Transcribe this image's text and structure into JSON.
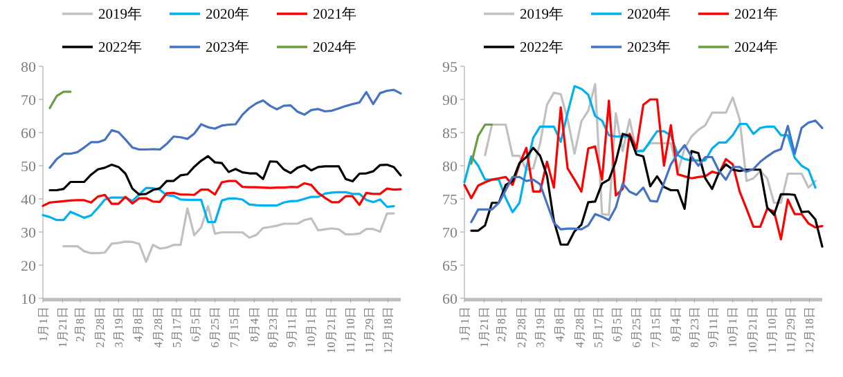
{
  "chart_data": [
    {
      "type": "line",
      "legend": "top",
      "x": [
        "--01-01",
        "--01-08",
        "--01-15",
        "--01-22",
        "--01-29",
        "--02-05",
        "--02-12",
        "--02-19",
        "--02-26",
        "--03-05",
        "--03-12",
        "--03-19",
        "--03-26",
        "--04-02",
        "--04-09",
        "--04-16",
        "--04-23",
        "--04-30",
        "--05-07",
        "--05-14",
        "--05-21",
        "--05-28",
        "--06-04",
        "--06-11",
        "--06-18",
        "--06-25",
        "--07-02",
        "--07-09",
        "--07-16",
        "--07-23",
        "--07-30",
        "--08-06",
        "--08-13",
        "--08-20",
        "--08-27",
        "--09-03",
        "--09-10",
        "--09-17",
        "--09-24",
        "--10-01",
        "--10-08",
        "--10-15",
        "--10-22",
        "--10-29",
        "--11-05",
        "--11-12",
        "--11-19",
        "--11-26",
        "--12-03",
        "--12-10",
        "--12-17",
        "--12-24",
        "--12-31"
      ],
      "xlim": [
        "--01-01",
        "--12-31"
      ],
      "xticks": [
        {
          "value": "--01-01",
          "label": "1月1日"
        },
        {
          "value": "--01-21",
          "label": "1月21日"
        },
        {
          "value": "--02-08",
          "label": "2月8日"
        },
        {
          "value": "--02-28",
          "label": "2月28日"
        },
        {
          "value": "--03-19",
          "label": "3月19日"
        },
        {
          "value": "--04-08",
          "label": "4月8日"
        },
        {
          "value": "--04-28",
          "label": "4月28日"
        },
        {
          "value": "--05-17",
          "label": "5月17日"
        },
        {
          "value": "--06-05",
          "label": "6月5日"
        },
        {
          "value": "--06-25",
          "label": "6月25日"
        },
        {
          "value": "--07-15",
          "label": "7月15日"
        },
        {
          "value": "--08-04",
          "label": "8月4日"
        },
        {
          "value": "--08-23",
          "label": "8月23日"
        },
        {
          "value": "--09-11",
          "label": "9月11日"
        },
        {
          "value": "--10-01",
          "label": "10月1日"
        },
        {
          "value": "--10-21",
          "label": "10月21日"
        },
        {
          "value": "--11-10",
          "label": "11月10日"
        },
        {
          "value": "--11-29",
          "label": "11月29日"
        },
        {
          "value": "--12-18",
          "label": "12月18日"
        }
      ],
      "ylim": [
        10,
        80
      ],
      "yticks": [
        10,
        20,
        30,
        40,
        50,
        60,
        70,
        80
      ],
      "series": [
        {
          "name": "2019年",
          "color": "#c0c0c0",
          "values": [
            null,
            null,
            null,
            25.7,
            25.7,
            25.7,
            24.2,
            23.6,
            23.6,
            23.8,
            26.5,
            26.7,
            27.1,
            27,
            26.4,
            21,
            26.1,
            25,
            25.3,
            26.1,
            26.1,
            37.1,
            29,
            31.4,
            37.8,
            29.5,
            29.9,
            29.9,
            29.9,
            29.9,
            28.3,
            29.1,
            31.2,
            31.5,
            31.9,
            32.5,
            32.5,
            32.5,
            33.6,
            34.1,
            30.5,
            30.8,
            31.1,
            30.8,
            29.3,
            29.3,
            29.5,
            30.9,
            30.9,
            30.1,
            35.6,
            35.6,
            null
          ]
        },
        {
          "name": "2020年",
          "color": "#00b0f0",
          "values": [
            35.1,
            34.5,
            33.6,
            33.6,
            36.1,
            35.2,
            34.3,
            35,
            37.3,
            39.8,
            40.4,
            40.4,
            40.4,
            39.4,
            41.3,
            43.3,
            43.2,
            42.7,
            41.1,
            40.9,
            39.8,
            39.7,
            39.7,
            39.7,
            33,
            33,
            39.5,
            40.1,
            40.1,
            39.8,
            38.3,
            38.1,
            38,
            38,
            38,
            38.9,
            39.3,
            39.4,
            40,
            40.6,
            40.6,
            41.6,
            41.9,
            42,
            42,
            41.5,
            41.5,
            39.7,
            39,
            39.8,
            37.6,
            37.8,
            null
          ]
        },
        {
          "name": "2021年",
          "color": "#ff0000",
          "values": [
            37.9,
            38.9,
            39.1,
            39.3,
            39.5,
            39.6,
            39.6,
            38.9,
            40.7,
            41.2,
            38.5,
            38.5,
            40.6,
            38.6,
            40.2,
            40.2,
            39.2,
            39.1,
            41.7,
            41.8,
            41.3,
            41.3,
            41.2,
            42.8,
            42.8,
            41.3,
            45,
            45.4,
            45.4,
            43.6,
            43.5,
            43.5,
            43.4,
            43.3,
            43.4,
            43.4,
            43.6,
            43.5,
            44.7,
            44.2,
            41.8,
            40.3,
            39,
            39,
            40.8,
            40.8,
            38.2,
            41.8,
            41.5,
            41.5,
            43.1,
            42.8,
            42.9
          ]
        },
        {
          "name": "2022年",
          "color": "#000000",
          "values": [
            null,
            42.6,
            42.6,
            43,
            45.1,
            45.1,
            45.1,
            47.3,
            48.9,
            49.4,
            50.3,
            49.6,
            47.6,
            43.1,
            41.3,
            41.5,
            42.7,
            43.2,
            45.4,
            45.4,
            47.1,
            47.4,
            49.7,
            51.5,
            52.9,
            51,
            50.8,
            48.1,
            49,
            48,
            47.7,
            47.7,
            46,
            51.3,
            51.2,
            48.9,
            47.8,
            49.4,
            50.1,
            48.6,
            49.6,
            49.8,
            49.8,
            49.8,
            46,
            45.3,
            47.6,
            47.7,
            48.3,
            50.2,
            50.3,
            49.6,
            47.1
          ]
        },
        {
          "name": "2023年",
          "color": "#4472c4",
          "values": [
            null,
            49.4,
            52,
            53.6,
            53.6,
            54.1,
            55.5,
            57.1,
            57.1,
            57.8,
            60.7,
            60.1,
            57.9,
            55.5,
            54.9,
            54.9,
            55,
            54.9,
            56.6,
            58.8,
            58.6,
            58.1,
            59.7,
            62.5,
            61.6,
            61.2,
            62.1,
            62.4,
            62.5,
            65.4,
            67.4,
            68.8,
            69.7,
            68.1,
            67,
            68.1,
            68.2,
            66.3,
            65.4,
            66.8,
            67.1,
            66.4,
            66.6,
            67.3,
            68,
            68.6,
            69.1,
            72.2,
            68.6,
            71.9,
            72.6,
            72.9,
            71.8
          ]
        },
        {
          "name": "2024年",
          "color": "#6a9e3f",
          "x": [
            "--01-08",
            "--01-15",
            "--01-22",
            "--01-29"
          ],
          "values": [
            67.4,
            71,
            72.3,
            72.3
          ]
        }
      ]
    },
    {
      "type": "line",
      "legend": "top",
      "x": [
        "--01-01",
        "--01-08",
        "--01-15",
        "--01-22",
        "--01-29",
        "--02-05",
        "--02-12",
        "--02-19",
        "--02-26",
        "--03-05",
        "--03-12",
        "--03-19",
        "--03-26",
        "--04-02",
        "--04-09",
        "--04-16",
        "--04-23",
        "--04-30",
        "--05-07",
        "--05-14",
        "--05-21",
        "--05-28",
        "--06-04",
        "--06-11",
        "--06-18",
        "--06-25",
        "--07-02",
        "--07-09",
        "--07-16",
        "--07-23",
        "--07-30",
        "--08-06",
        "--08-13",
        "--08-20",
        "--08-27",
        "--09-03",
        "--09-10",
        "--09-17",
        "--09-24",
        "--10-01",
        "--10-08",
        "--10-15",
        "--10-22",
        "--10-29",
        "--11-05",
        "--11-12",
        "--11-19",
        "--11-26",
        "--12-03",
        "--12-10",
        "--12-17",
        "--12-24",
        "--12-31"
      ],
      "xlim": [
        "--01-01",
        "--12-31"
      ],
      "xticks": [
        {
          "value": "--01-01",
          "label": "1月1日"
        },
        {
          "value": "--01-21",
          "label": "1月21日"
        },
        {
          "value": "--02-08",
          "label": "2月8日"
        },
        {
          "value": "--02-28",
          "label": "2月28日"
        },
        {
          "value": "--03-19",
          "label": "3月19日"
        },
        {
          "value": "--04-08",
          "label": "4月8日"
        },
        {
          "value": "--04-28",
          "label": "4月28日"
        },
        {
          "value": "--05-17",
          "label": "5月17日"
        },
        {
          "value": "--06-05",
          "label": "6月5日"
        },
        {
          "value": "--06-25",
          "label": "6月25日"
        },
        {
          "value": "--07-15",
          "label": "7月15日"
        },
        {
          "value": "--08-04",
          "label": "8月4日"
        },
        {
          "value": "--08-23",
          "label": "8月23日"
        },
        {
          "value": "--09-11",
          "label": "9月11日"
        },
        {
          "value": "--10-01",
          "label": "10月1日"
        },
        {
          "value": "--10-21",
          "label": "10月21日"
        },
        {
          "value": "--11-10",
          "label": "11月10日"
        },
        {
          "value": "--11-29",
          "label": "11月29日"
        },
        {
          "value": "--12-18",
          "label": "12月18日"
        }
      ],
      "ylim": [
        60,
        95
      ],
      "yticks": [
        60,
        65,
        70,
        75,
        80,
        85,
        90,
        95
      ],
      "series": [
        {
          "name": "2019年",
          "color": "#c0c0c0",
          "values": [
            null,
            null,
            null,
            81.6,
            86.2,
            86.2,
            86.2,
            81.5,
            81.5,
            79.4,
            79.6,
            83.4,
            89.2,
            91,
            90.8,
            87,
            81.8,
            86.7,
            88.3,
            92.3,
            72.7,
            72.6,
            87.9,
            82.2,
            87,
            82.2,
            82.4,
            83.4,
            83.4,
            83.4,
            83.4,
            79,
            82.6,
            84.4,
            85.4,
            86.1,
            88,
            88,
            88,
            90.3,
            87,
            77.7,
            78.1,
            79.2,
            78.1,
            74.4,
            74.4,
            78.8,
            78.8,
            78.8,
            76.7,
            77.7,
            null
          ]
        },
        {
          "name": "2020年",
          "color": "#00b0f0",
          "values": [
            77.5,
            81.4,
            80,
            77.9,
            77.9,
            77.9,
            75.1,
            73,
            74.4,
            79.6,
            84.2,
            85.9,
            85.9,
            85.9,
            83.6,
            88,
            92,
            91.6,
            90.7,
            87.5,
            86.8,
            84.6,
            84.4,
            84.4,
            84.4,
            82.2,
            82.2,
            83.7,
            85.2,
            85.2,
            84.6,
            81.6,
            81,
            80.8,
            80.8,
            80.8,
            82.6,
            83.5,
            83.5,
            84.6,
            86.3,
            86.3,
            84.8,
            85.7,
            85.9,
            85.9,
            84.6,
            84.6,
            81.2,
            80,
            79.4,
            76.7,
            null
          ]
        },
        {
          "name": "2021年",
          "color": "#ff0000",
          "values": [
            77.1,
            75.1,
            77,
            77.5,
            77.9,
            78.1,
            78.3,
            77.1,
            80.2,
            82.7,
            76.1,
            76.1,
            80.6,
            76.7,
            88.8,
            79.6,
            77.9,
            76.1,
            82.6,
            82.9,
            77.9,
            89.8,
            75.5,
            76.5,
            84.8,
            82.6,
            89.2,
            90,
            90,
            80,
            86.1,
            78.7,
            78.4,
            78.1,
            78.3,
            78.4,
            79.1,
            78.8,
            81,
            80.2,
            76.1,
            73.5,
            70.8,
            70.8,
            73.5,
            73.1,
            68.9,
            74.9,
            72.7,
            72.7,
            71.3,
            70.7,
            70.9
          ]
        },
        {
          "name": "2022年",
          "color": "#000000",
          "values": [
            null,
            70.2,
            70.2,
            71,
            74.4,
            74.4,
            77.1,
            77.7,
            80.4,
            81.3,
            82.7,
            81.5,
            78.5,
            71.7,
            68.1,
            68.1,
            70.1,
            71.1,
            74.5,
            74.6,
            77.3,
            77.9,
            80.6,
            84.8,
            84.5,
            81.7,
            81.4,
            76.9,
            78.4,
            76.8,
            76.3,
            76.3,
            73.5,
            82.2,
            81.9,
            78.1,
            76.5,
            79,
            80.2,
            79.4,
            79.2,
            79.4,
            79.4,
            79.4,
            73.7,
            72.6,
            75.7,
            75.7,
            75.6,
            73,
            73.1,
            71.9,
            67.8
          ]
        },
        {
          "name": "2023年",
          "color": "#4472c4",
          "values": [
            null,
            71.5,
            73.4,
            73.4,
            73.4,
            74.4,
            76.3,
            78.3,
            78.3,
            77.7,
            77.9,
            77.2,
            74.3,
            71.4,
            70.4,
            70.5,
            70.5,
            70.4,
            71,
            72.7,
            72.3,
            71.8,
            73.7,
            77.3,
            76.1,
            75.6,
            76.7,
            74.7,
            74.6,
            77.4,
            80.2,
            81.8,
            83.1,
            81.4,
            80,
            81.3,
            81.3,
            79.2,
            77.9,
            79.8,
            79.8,
            79.1,
            79.5,
            80.6,
            81.4,
            82.1,
            82.5,
            86,
            81.8,
            85.7,
            86.5,
            86.8,
            85.7
          ]
        },
        {
          "name": "2024年",
          "color": "#6a9e3f",
          "x": [
            "--01-08",
            "--01-15",
            "--01-22",
            "--01-29"
          ],
          "values": [
            80.3,
            84.5,
            86.2,
            86.2
          ]
        }
      ]
    }
  ]
}
